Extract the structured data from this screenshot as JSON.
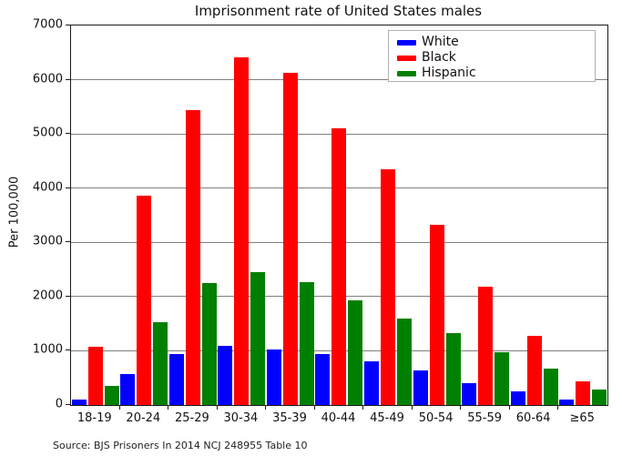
{
  "title": "Imprisonment rate of United States males",
  "source_note": "Source: BJS Prisoners In 2014 NCJ 248955 Table 10",
  "chart_data": {
    "type": "bar",
    "title": "Imprisonment rate of United States males",
    "xlabel": "",
    "ylabel": "Per 100,000",
    "ylim": [
      0,
      7000
    ],
    "y_ticks": [
      0,
      1000,
      2000,
      3000,
      4000,
      5000,
      6000,
      7000
    ],
    "grid": "horizontal",
    "legend_position": "upper center-right inside plot",
    "categories": [
      "18-19",
      "20-24",
      "25-29",
      "30-34",
      "35-39",
      "40-44",
      "45-49",
      "50-54",
      "55-59",
      "60-64",
      "≥65"
    ],
    "series": [
      {
        "name": "White",
        "color": "#0000ff",
        "values": [
          102,
          577,
          947,
          1092,
          1017,
          932,
          806,
          632,
          408,
          256,
          109
        ]
      },
      {
        "name": "Black",
        "color": "#ff0000",
        "values": [
          1072,
          3868,
          5434,
          6412,
          6122,
          5103,
          4355,
          3329,
          2176,
          1270,
          442
        ]
      },
      {
        "name": "Hispanic",
        "color": "#008000",
        "values": [
          349,
          1521,
          2245,
          2457,
          2272,
          1933,
          1598,
          1324,
          979,
          676,
          289
        ]
      }
    ]
  },
  "colors": {
    "white_series": "#0000ff",
    "black_series": "#ff0000",
    "hispanic_series": "#008000",
    "gridline": "#808080",
    "axis_border": "#1a1a1a",
    "legend_border": "#b0b0b0"
  }
}
